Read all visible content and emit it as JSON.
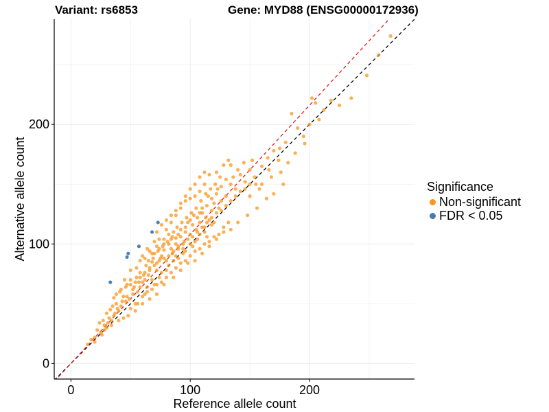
{
  "title_left": "Variant: rs6853",
  "title_right": "Gene: MYD88 (ENSG00000172936)",
  "chart_data": {
    "type": "scatter",
    "xlabel": "Reference allele count",
    "ylabel": "Alternative allele count",
    "xlim": [
      -14,
      288
    ],
    "ylim": [
      -13,
      288
    ],
    "x_ticks": [
      0,
      100,
      200
    ],
    "y_ticks": [
      0,
      100,
      200
    ],
    "grid": true,
    "reference_lines": [
      {
        "name": "identity",
        "slope": 1.0,
        "intercept": 0,
        "color": "#000000",
        "style": "dashed"
      },
      {
        "name": "fit",
        "slope": 1.08,
        "intercept": 0,
        "color": "#e41a1c",
        "style": "dashed"
      }
    ],
    "series": [
      {
        "name": "Non-significant",
        "color": "#f8961e",
        "points": [
          [
            14,
            16
          ],
          [
            17,
            20
          ],
          [
            20,
            22
          ],
          [
            22,
            28
          ],
          [
            24,
            34
          ],
          [
            27,
            36
          ],
          [
            30,
            42
          ],
          [
            33,
            45
          ],
          [
            36,
            55
          ],
          [
            38,
            50
          ],
          [
            41,
            60
          ],
          [
            44,
            56
          ],
          [
            47,
            66
          ],
          [
            50,
            70
          ],
          [
            52,
            62
          ],
          [
            55,
            72
          ],
          [
            58,
            76
          ],
          [
            60,
            68
          ],
          [
            63,
            82
          ],
          [
            65,
            74
          ],
          [
            68,
            85
          ],
          [
            70,
            92
          ],
          [
            72,
            78
          ],
          [
            75,
            88
          ],
          [
            78,
            95
          ],
          [
            80,
            86
          ],
          [
            82,
            100
          ],
          [
            85,
            92
          ],
          [
            88,
            105
          ],
          [
            90,
            98
          ],
          [
            92,
            112
          ],
          [
            95,
            102
          ],
          [
            98,
            118
          ],
          [
            100,
            108
          ],
          [
            103,
            124
          ],
          [
            105,
            112
          ],
          [
            108,
            118
          ],
          [
            110,
            130
          ],
          [
            113,
            122
          ],
          [
            115,
            140
          ],
          [
            118,
            128
          ],
          [
            120,
            134
          ],
          [
            123,
            146
          ],
          [
            126,
            136
          ],
          [
            130,
            140
          ],
          [
            134,
            150
          ],
          [
            138,
            146
          ],
          [
            142,
            158
          ],
          [
            146,
            152
          ],
          [
            150,
            162
          ],
          [
            155,
            150
          ],
          [
            160,
            165
          ],
          [
            165,
            172
          ],
          [
            170,
            178
          ],
          [
            175,
            180
          ],
          [
            180,
            185
          ],
          [
            185,
            209
          ],
          [
            190,
            197
          ],
          [
            195,
            190
          ],
          [
            200,
            200
          ],
          [
            202,
            222
          ],
          [
            205,
            218
          ],
          [
            208,
            204
          ],
          [
            212,
            212
          ],
          [
            218,
            220
          ],
          [
            225,
            216
          ],
          [
            235,
            222
          ],
          [
            248,
            241
          ],
          [
            258,
            258
          ],
          [
            268,
            274
          ],
          [
            35,
            48
          ],
          [
            40,
            44
          ],
          [
            46,
            52
          ],
          [
            52,
            58
          ],
          [
            58,
            64
          ],
          [
            62,
            70
          ],
          [
            66,
            80
          ],
          [
            72,
            84
          ],
          [
            76,
            90
          ],
          [
            84,
            96
          ],
          [
            86,
            110
          ],
          [
            94,
            96
          ],
          [
            96,
            114
          ],
          [
            102,
            116
          ],
          [
            104,
            102
          ],
          [
            108,
            126
          ],
          [
            112,
            114
          ],
          [
            116,
            120
          ],
          [
            120,
            118
          ],
          [
            124,
            130
          ],
          [
            60,
            90
          ],
          [
            64,
            96
          ],
          [
            70,
            102
          ],
          [
            74,
            104
          ],
          [
            80,
            112
          ],
          [
            84,
            118
          ],
          [
            88,
            124
          ],
          [
            92,
            130
          ],
          [
            96,
            136
          ],
          [
            100,
            138
          ],
          [
            104,
            140
          ],
          [
            108,
            144
          ],
          [
            112,
            150
          ],
          [
            116,
            158
          ],
          [
            122,
            160
          ],
          [
            128,
            166
          ],
          [
            132,
            170
          ],
          [
            140,
            162
          ],
          [
            145,
            168
          ],
          [
            152,
            170
          ],
          [
            30,
            30
          ],
          [
            34,
            32
          ],
          [
            40,
            36
          ],
          [
            48,
            40
          ],
          [
            54,
            44
          ],
          [
            60,
            50
          ],
          [
            66,
            54
          ],
          [
            72,
            58
          ],
          [
            78,
            66
          ],
          [
            86,
            72
          ],
          [
            92,
            78
          ],
          [
            98,
            84
          ],
          [
            104,
            86
          ],
          [
            110,
            92
          ],
          [
            116,
            98
          ],
          [
            122,
            104
          ],
          [
            128,
            110
          ],
          [
            134,
            112
          ],
          [
            140,
            118
          ],
          [
            148,
            124
          ],
          [
            156,
            130
          ],
          [
            164,
            138
          ],
          [
            170,
            142
          ],
          [
            178,
            150
          ],
          [
            182,
            168
          ],
          [
            160,
            150
          ],
          [
            166,
            162
          ],
          [
            174,
            170
          ],
          [
            188,
            176
          ],
          [
            196,
            184
          ],
          [
            20,
            18
          ],
          [
            26,
            24
          ],
          [
            28,
            32
          ],
          [
            32,
            38
          ],
          [
            36,
            40
          ],
          [
            42,
            48
          ],
          [
            44,
            38
          ],
          [
            50,
            46
          ],
          [
            54,
            50
          ],
          [
            56,
            60
          ],
          [
            62,
            58
          ],
          [
            64,
            64
          ],
          [
            68,
            70
          ],
          [
            70,
            66
          ],
          [
            74,
            72
          ],
          [
            76,
            76
          ],
          [
            80,
            78
          ],
          [
            82,
            82
          ],
          [
            86,
            86
          ],
          [
            88,
            90
          ],
          [
            90,
            88
          ],
          [
            94,
            92
          ],
          [
            96,
            94
          ],
          [
            100,
            100
          ],
          [
            102,
            98
          ],
          [
            106,
            104
          ],
          [
            108,
            108
          ],
          [
            112,
            110
          ],
          [
            114,
            106
          ],
          [
            118,
            116
          ],
          [
            66,
            94
          ],
          [
            72,
            98
          ],
          [
            78,
            104
          ],
          [
            82,
            108
          ],
          [
            88,
            100
          ],
          [
            92,
            106
          ],
          [
            96,
            110
          ],
          [
            100,
            120
          ],
          [
            106,
            122
          ],
          [
            110,
            126
          ],
          [
            114,
            132
          ],
          [
            118,
            138
          ],
          [
            122,
            142
          ],
          [
            126,
            148
          ],
          [
            130,
            154
          ],
          [
            136,
            156
          ],
          [
            150,
            140
          ],
          [
            158,
            146
          ],
          [
            168,
            156
          ],
          [
            176,
            160
          ],
          [
            45,
            70
          ],
          [
            50,
            78
          ],
          [
            55,
            80
          ],
          [
            58,
            86
          ],
          [
            62,
            88
          ],
          [
            68,
            92
          ],
          [
            74,
            96
          ],
          [
            78,
            100
          ],
          [
            84,
            104
          ],
          [
            90,
            108
          ],
          [
            38,
            58
          ],
          [
            42,
            62
          ],
          [
            46,
            64
          ],
          [
            50,
            66
          ],
          [
            54,
            68
          ],
          [
            58,
            72
          ],
          [
            62,
            76
          ],
          [
            66,
            78
          ],
          [
            70,
            82
          ],
          [
            74,
            86
          ],
          [
            78,
            88
          ],
          [
            82,
            90
          ],
          [
            86,
            94
          ],
          [
            90,
            96
          ],
          [
            94,
            100
          ],
          [
            98,
            104
          ],
          [
            102,
            106
          ],
          [
            106,
            110
          ],
          [
            110,
            114
          ],
          [
            114,
            118
          ],
          [
            118,
            122
          ],
          [
            122,
            126
          ],
          [
            126,
            128
          ],
          [
            130,
            132
          ],
          [
            134,
            136
          ],
          [
            138,
            140
          ],
          [
            142,
            144
          ],
          [
            146,
            146
          ],
          [
            150,
            150
          ],
          [
            154,
            156
          ],
          [
            56,
            50
          ],
          [
            60,
            56
          ],
          [
            64,
            60
          ],
          [
            68,
            62
          ],
          [
            72,
            66
          ],
          [
            76,
            68
          ],
          [
            80,
            72
          ],
          [
            84,
            76
          ],
          [
            88,
            80
          ],
          [
            92,
            84
          ],
          [
            96,
            86
          ],
          [
            100,
            90
          ],
          [
            104,
            94
          ],
          [
            108,
            96
          ],
          [
            112,
            100
          ],
          [
            116,
            102
          ],
          [
            120,
            106
          ],
          [
            124,
            108
          ],
          [
            128,
            114
          ],
          [
            132,
            118
          ],
          [
            25,
            26
          ],
          [
            28,
            28
          ],
          [
            31,
            34
          ],
          [
            34,
            36
          ],
          [
            37,
            42
          ],
          [
            39,
            46
          ],
          [
            43,
            52
          ],
          [
            47,
            56
          ],
          [
            49,
            54
          ],
          [
            53,
            64
          ],
          [
            57,
            68
          ],
          [
            61,
            74
          ],
          [
            65,
            86
          ],
          [
            69,
            88
          ],
          [
            73,
            94
          ],
          [
            77,
            98
          ],
          [
            81,
            102
          ],
          [
            85,
            106
          ],
          [
            89,
            114
          ],
          [
            93,
            118
          ],
          [
            97,
            122
          ],
          [
            101,
            126
          ],
          [
            105,
            130
          ],
          [
            109,
            136
          ],
          [
            113,
            142
          ],
          [
            117,
            146
          ],
          [
            121,
            150
          ],
          [
            125,
            156
          ],
          [
            72,
            110
          ],
          [
            76,
            116
          ],
          [
            80,
            120
          ],
          [
            84,
            124
          ],
          [
            88,
            128
          ],
          [
            92,
            134
          ],
          [
            96,
            140
          ],
          [
            100,
            146
          ],
          [
            104,
            150
          ],
          [
            108,
            156
          ],
          [
            112,
            160
          ],
          [
            134,
            166
          ]
        ]
      },
      {
        "name": "FDR < 0.05",
        "color": "#4a7ab0",
        "points": [
          [
            33,
            68
          ],
          [
            47,
            89
          ],
          [
            48,
            92
          ],
          [
            57,
            98
          ],
          [
            68,
            110
          ],
          [
            73,
            118
          ]
        ]
      }
    ],
    "legend": {
      "title": "Significance",
      "position": "right",
      "entries": [
        {
          "label": "Non-significant",
          "color": "#f8961e"
        },
        {
          "label": "FDR < 0.05",
          "color": "#4a7ab0"
        }
      ]
    }
  }
}
